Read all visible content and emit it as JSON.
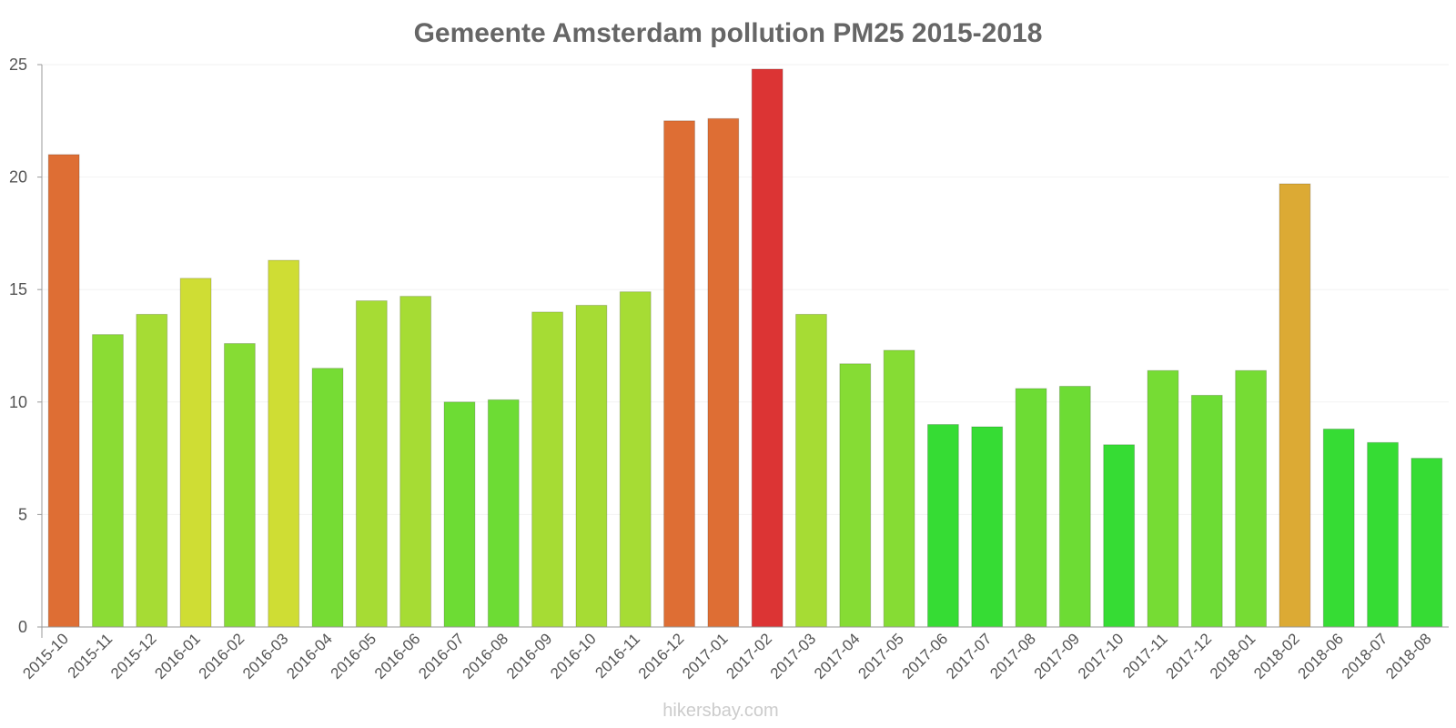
{
  "chart_data": {
    "type": "bar",
    "title": "Gemeente Amsterdam pollution PM25 2015-2018",
    "xlabel": "",
    "ylabel": "",
    "ylim": [
      0,
      25
    ],
    "yticks": [
      0,
      5,
      10,
      15,
      20,
      25
    ],
    "categories": [
      "2015-10",
      "2015-11",
      "2015-12",
      "2016-01",
      "2016-02",
      "2016-03",
      "2016-04",
      "2016-05",
      "2016-06",
      "2016-07",
      "2016-08",
      "2016-09",
      "2016-10",
      "2016-11",
      "2016-12",
      "2017-01",
      "2017-02",
      "2017-03",
      "2017-04",
      "2017-05",
      "2017-06",
      "2017-07",
      "2017-08",
      "2017-09",
      "2017-10",
      "2017-11",
      "2017-12",
      "2018-01",
      "2018-02",
      "2018-06",
      "2018-07",
      "2018-08"
    ],
    "values": [
      21.0,
      13.0,
      13.9,
      15.5,
      12.6,
      16.3,
      11.5,
      14.5,
      14.7,
      10.0,
      10.1,
      14.0,
      14.3,
      14.9,
      22.5,
      22.6,
      24.8,
      13.9,
      11.7,
      12.3,
      9.0,
      8.9,
      10.6,
      10.7,
      8.1,
      11.4,
      10.3,
      11.4,
      19.7,
      8.8,
      8.2,
      7.5
    ],
    "colors": [
      "#de6e34",
      "#8bdc34",
      "#a6dc34",
      "#cfdd34",
      "#86dc34",
      "#cfdd34",
      "#76dc34",
      "#a6dc34",
      "#a6dc34",
      "#6ddc34",
      "#6ddc34",
      "#a6dc34",
      "#a6dc34",
      "#a6dc34",
      "#de6e34",
      "#de6e34",
      "#dc3434",
      "#a6dc34",
      "#86dc34",
      "#86dc34",
      "#36dc34",
      "#36dc34",
      "#6ddc34",
      "#6ddc34",
      "#36dc34",
      "#76dc34",
      "#6ddc34",
      "#76dc34",
      "#dcaa34",
      "#36dc34",
      "#36dc34",
      "#36dc34"
    ]
  },
  "footer": {
    "credit": "hikersbay.com"
  }
}
